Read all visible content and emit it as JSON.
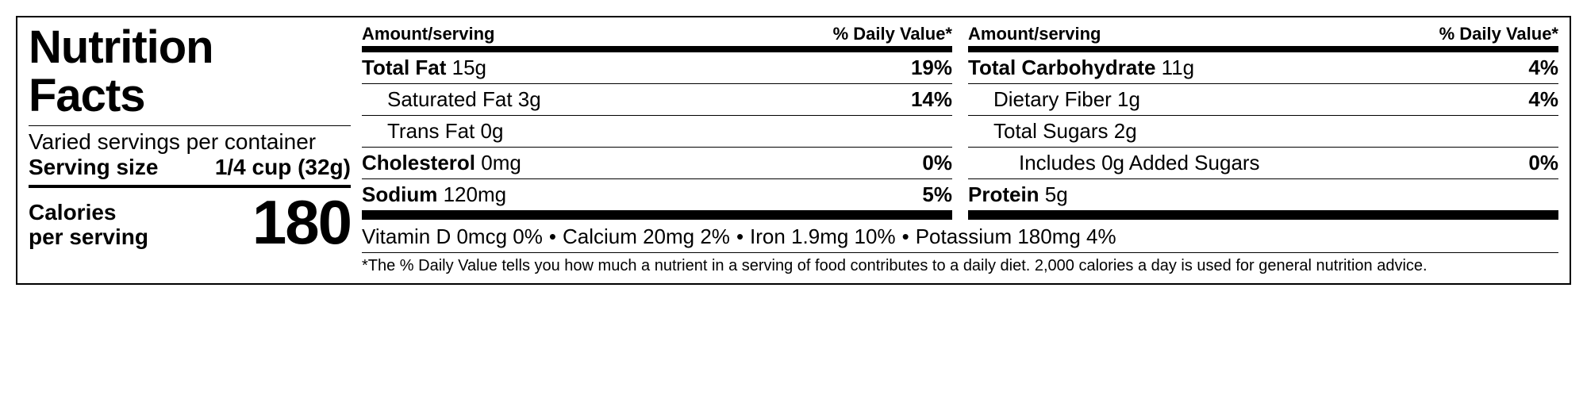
{
  "colors": {
    "text": "#000000",
    "background": "#ffffff",
    "rule": "#000000"
  },
  "typography": {
    "family": "Arial, Helvetica, sans-serif",
    "title_size_pt": 44,
    "body_size_pt": 20,
    "calories_size_pt": 58
  },
  "label": {
    "title_line1": "Nutrition",
    "title_line2": "Facts",
    "servings_per_container": "Varied servings per container",
    "serving_size_label": "Serving size",
    "serving_size_value": "1/4 cup (32g)",
    "calories_label_line1": "Calories",
    "calories_label_line2": "per serving",
    "calories_value": "180"
  },
  "headers": {
    "amount": "Amount/serving",
    "dv": "% Daily Value*"
  },
  "col1": [
    {
      "label": "Total Fat",
      "amount": "15g",
      "dv": "19%",
      "bold": true,
      "indent": 0
    },
    {
      "label": "Saturated Fat",
      "amount": "3g",
      "dv": "14%",
      "bold": false,
      "indent": 1
    },
    {
      "label": "Trans Fat",
      "amount": "0g",
      "dv": "",
      "bold": false,
      "indent": 1
    },
    {
      "label": "Cholesterol",
      "amount": "0mg",
      "dv": "0%",
      "bold": true,
      "indent": 0
    },
    {
      "label": "Sodium",
      "amount": "120mg",
      "dv": "5%",
      "bold": true,
      "indent": 0
    }
  ],
  "col2": [
    {
      "label": "Total Carbohydrate",
      "amount": "11g",
      "dv": "4%",
      "bold": true,
      "indent": 0
    },
    {
      "label": "Dietary Fiber",
      "amount": "1g",
      "dv": "4%",
      "bold": false,
      "indent": 1
    },
    {
      "label": "Total Sugars",
      "amount": "2g",
      "dv": "",
      "bold": false,
      "indent": 1
    },
    {
      "label": "Includes 0g Added Sugars",
      "amount": "",
      "dv": "0%",
      "bold": false,
      "indent": 2
    },
    {
      "label": "Protein",
      "amount": "5g",
      "dv": "",
      "bold": true,
      "indent": 0
    }
  ],
  "vitamins": [
    {
      "text": "Vitamin D 0mcg 0%"
    },
    {
      "text": "Calcium 20mg 2%"
    },
    {
      "text": "Iron 1.9mg 10%"
    },
    {
      "text": "Potassium 180mg 4%"
    }
  ],
  "footnote": "*The % Daily Value tells you how much a nutrient in a serving of food contributes to a daily diet. 2,000 calories a day is used for general nutrition advice."
}
